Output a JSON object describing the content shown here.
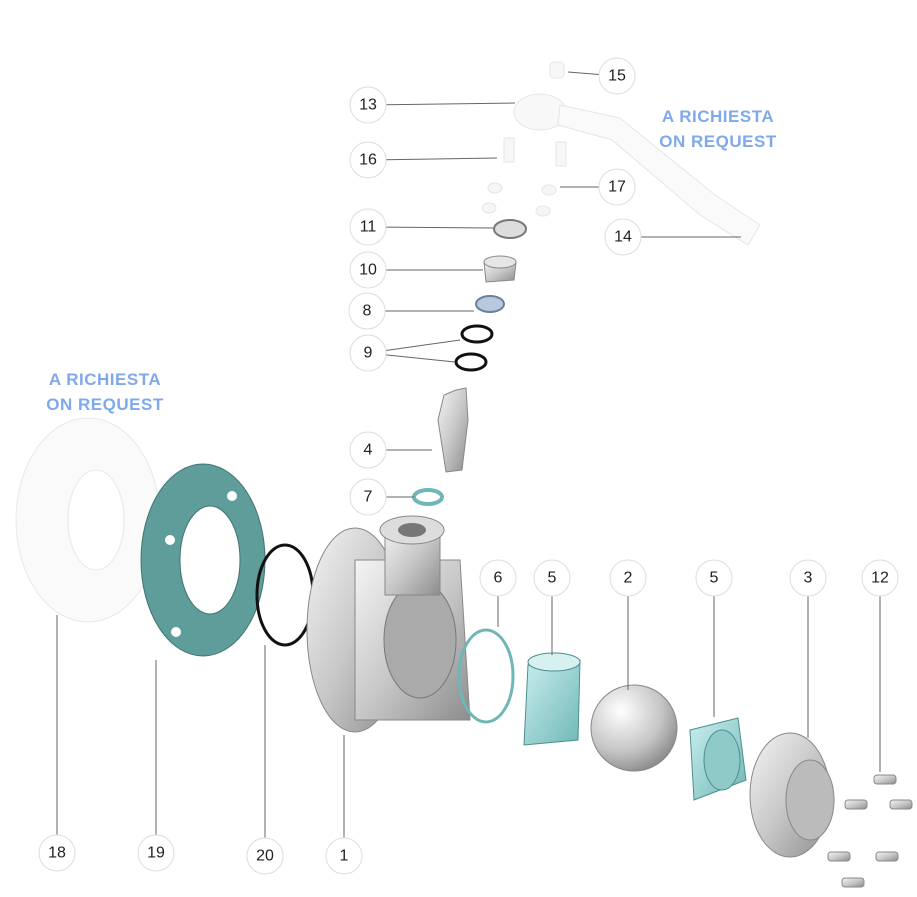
{
  "annotations": [
    {
      "line1": "A RICHIESTA",
      "line2": "ON REQUEST"
    },
    {
      "line1": "A RICHIESTA",
      "line2": "ON REQUEST"
    }
  ],
  "callouts": [
    "15",
    "13",
    "16",
    "17",
    "11",
    "14",
    "10",
    "8",
    "9",
    "4",
    "7",
    "6",
    "5",
    "2",
    "5",
    "3",
    "12",
    "18",
    "19",
    "20",
    "1"
  ]
}
